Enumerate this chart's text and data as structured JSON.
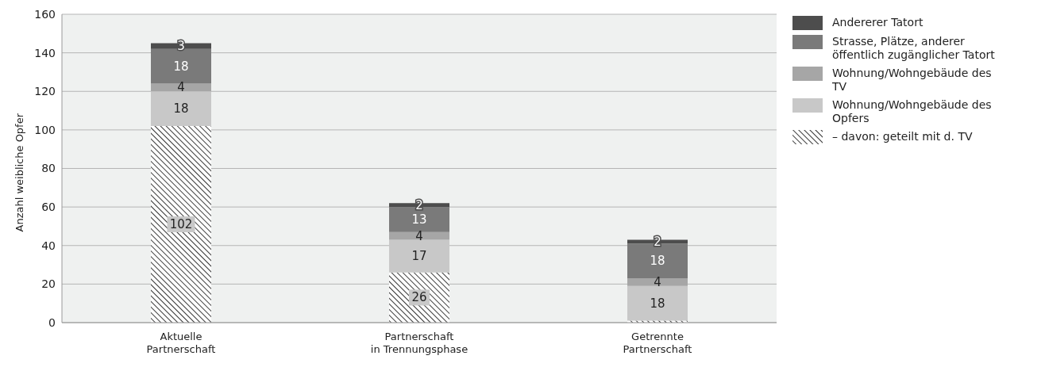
{
  "chart_data": {
    "type": "bar",
    "stacked": true,
    "ylabel": "Anzahl weibliche Opfer",
    "categories": [
      "Aktuelle\nPartnerschaft",
      "Partnerschaft\nin Trennungsphase",
      "Getrennte\nPartnerschaft"
    ],
    "series": [
      {
        "name": "– davon: geteilt mit d. TV",
        "color": "#3a3a3a",
        "values": [
          102,
          26,
          1
        ],
        "value_labels": [
          "102",
          "26",
          null
        ]
      },
      {
        "name": "Wohnung/Wohngebäude des Opfers",
        "color": "#c8c8c8",
        "values": [
          18,
          17,
          18
        ],
        "value_labels": [
          "18",
          "17",
          "18"
        ]
      },
      {
        "name": "Wohnung/Wohngebäude des TV",
        "color": "#a6a6a6",
        "values": [
          4,
          4,
          4
        ],
        "value_labels": [
          "4",
          "4",
          "4"
        ]
      },
      {
        "name": "Strasse, Plätze, anderer öffentlich zugänglicher Tatort",
        "color": "#7a7a7a",
        "values": [
          18,
          13,
          18
        ],
        "value_labels": [
          "18",
          "13",
          "18"
        ]
      },
      {
        "name": "Andererer Tatort",
        "color": "#4d4d4d",
        "values": [
          3,
          2,
          2
        ],
        "value_labels": [
          "3",
          "2",
          "2"
        ]
      }
    ],
    "ylim": [
      0,
      160
    ],
    "yticks": [
      0,
      20,
      40,
      60,
      80,
      100,
      120,
      140,
      160
    ],
    "grid": "y",
    "legend": "top right"
  }
}
